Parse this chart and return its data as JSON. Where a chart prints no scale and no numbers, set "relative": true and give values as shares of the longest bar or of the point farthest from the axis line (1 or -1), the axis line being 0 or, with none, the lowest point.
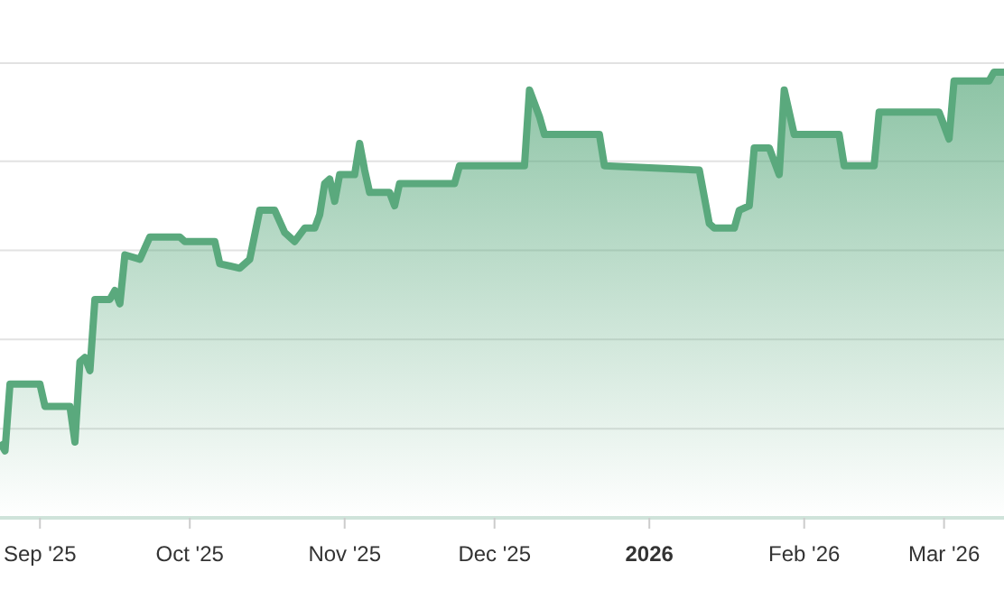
{
  "chart_data": {
    "type": "area",
    "relative": true,
    "grid": "y",
    "legend": false,
    "line_style": "solid",
    "marker": "none",
    "xlim": [
      "2025-08-24",
      "2026-03-13"
    ],
    "xticks": [
      {
        "value": "2025-09-01",
        "label": "Sep '25"
      },
      {
        "value": "2025-10-01",
        "label": "Oct '25"
      },
      {
        "value": "2025-11-01",
        "label": "Nov '25"
      },
      {
        "value": "2025-12-01",
        "label": "Dec '25"
      },
      {
        "value": "2026-01-01",
        "label": "2026"
      },
      {
        "value": "2026-02-01",
        "label": "Feb '26"
      },
      {
        "value": "2026-03-01",
        "label": "Mar '26"
      }
    ],
    "x": [
      "2025-08-24",
      "2025-08-25",
      "2025-08-26",
      "2025-09-01",
      "2025-09-02",
      "2025-09-07",
      "2025-09-08",
      "2025-09-09",
      "2025-09-10",
      "2025-09-11",
      "2025-09-12",
      "2025-09-15",
      "2025-09-16",
      "2025-09-17",
      "2025-09-18",
      "2025-09-21",
      "2025-09-23",
      "2025-09-29",
      "2025-09-30",
      "2025-10-06",
      "2025-10-07",
      "2025-10-11",
      "2025-10-13",
      "2025-10-15",
      "2025-10-18",
      "2025-10-20",
      "2025-10-22",
      "2025-10-24",
      "2025-10-26",
      "2025-10-27",
      "2025-10-28",
      "2025-10-29",
      "2025-10-30",
      "2025-10-31",
      "2025-11-03",
      "2025-11-04",
      "2025-11-05",
      "2025-11-06",
      "2025-11-10",
      "2025-11-11",
      "2025-11-12",
      "2025-11-23",
      "2025-11-24",
      "2025-12-07",
      "2025-12-08",
      "2025-12-10",
      "2025-12-11",
      "2025-12-22",
      "2025-12-23",
      "2026-01-11",
      "2026-01-13",
      "2026-01-14",
      "2026-01-18",
      "2026-01-19",
      "2026-01-21",
      "2026-01-22",
      "2026-01-25",
      "2026-01-27",
      "2026-01-28",
      "2026-01-30",
      "2026-02-08",
      "2026-02-09",
      "2026-02-15",
      "2026-02-16",
      "2026-02-18",
      "2026-02-28",
      "2026-03-02",
      "2026-03-03",
      "2026-03-10",
      "2026-03-11",
      "2026-03-13"
    ],
    "series": [
      {
        "color": "#5aa97d",
        "values": [
          0.17,
          0.15,
          0.3,
          0.3,
          0.25,
          0.25,
          0.17,
          0.35,
          0.36,
          0.33,
          0.49,
          0.49,
          0.51,
          0.48,
          0.59,
          0.58,
          0.63,
          0.63,
          0.62,
          0.62,
          0.57,
          0.56,
          0.58,
          0.69,
          0.69,
          0.64,
          0.62,
          0.65,
          0.65,
          0.68,
          0.75,
          0.76,
          0.71,
          0.77,
          0.77,
          0.84,
          0.78,
          0.73,
          0.73,
          0.7,
          0.75,
          0.75,
          0.79,
          0.79,
          0.96,
          0.9,
          0.86,
          0.86,
          0.79,
          0.78,
          0.66,
          0.65,
          0.65,
          0.69,
          0.7,
          0.83,
          0.83,
          0.77,
          0.96,
          0.86,
          0.86,
          0.79,
          0.79,
          0.91,
          0.91,
          0.91,
          0.85,
          0.98,
          0.98,
          1,
          1
        ]
      }
    ]
  }
}
